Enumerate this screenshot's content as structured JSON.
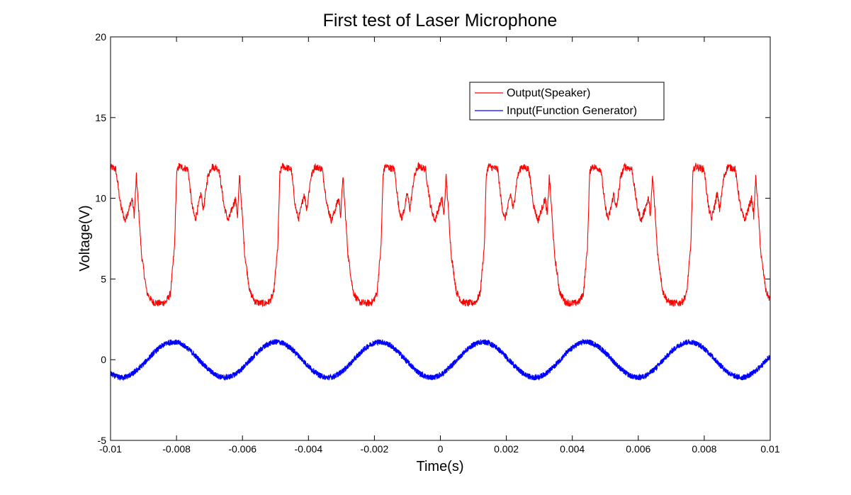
{
  "chart_data": {
    "type": "line",
    "title": "First test of Laser Microphone",
    "xlabel": "Time(s)",
    "ylabel": "Voltage(V)",
    "xlim": [
      -0.01,
      0.01
    ],
    "ylim": [
      -5,
      20
    ],
    "xticks": [
      -0.01,
      -0.008,
      -0.006,
      -0.004,
      -0.002,
      0,
      0.002,
      0.004,
      0.006,
      0.008,
      0.01
    ],
    "xtick_labels": [
      "-0.01",
      "-0.008",
      "-0.006",
      "-0.004",
      "-0.002",
      "0",
      "0.002",
      "0.004",
      "0.006",
      "0.008",
      "0.01"
    ],
    "yticks": [
      -5,
      0,
      5,
      10,
      15,
      20
    ],
    "ytick_labels": [
      "-5",
      "0",
      "5",
      "10",
      "15",
      "20"
    ],
    "grid": false,
    "legend_position": "top-right",
    "period_s": 0.00313,
    "series": [
      {
        "name": "Output(Speaker)",
        "color": "#ff0000",
        "period_waveform": {
          "phase": [
            0.0,
            0.02,
            0.05,
            0.1,
            0.14,
            0.18,
            0.21,
            0.23,
            0.25,
            0.27,
            0.3,
            0.35,
            0.4,
            0.45,
            0.5,
            0.54,
            0.58,
            0.62,
            0.64,
            0.66,
            0.7,
            0.75,
            0.79,
            0.82,
            0.85,
            0.875,
            0.9,
            0.94,
            0.98,
            1.0
          ],
          "values": [
            11.9,
            11.9,
            11.8,
            9.5,
            8.6,
            9.4,
            10.0,
            8.9,
            11.4,
            9.5,
            6.5,
            4.2,
            3.6,
            3.5,
            3.5,
            3.6,
            4.1,
            7.0,
            11.5,
            12.0,
            11.9,
            11.8,
            9.5,
            8.7,
            9.5,
            10.3,
            9.3,
            11.3,
            12.0,
            11.9
          ]
        }
      },
      {
        "name": "Input(Function Generator)",
        "color": "#0000ff",
        "sine": {
          "amplitude": 1.1,
          "offset": 0.0,
          "peak_time": -0.0081
        }
      }
    ]
  }
}
